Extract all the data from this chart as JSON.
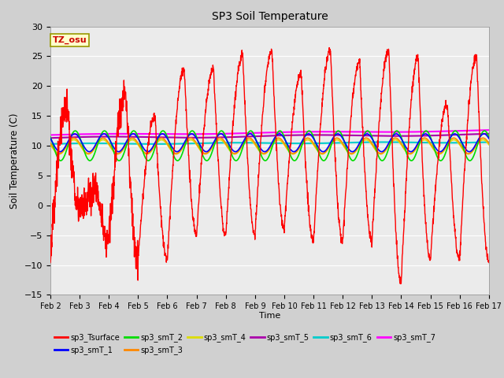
{
  "title": "SP3 Soil Temperature",
  "ylabel": "Soil Temperature (C)",
  "xlabel": "Time",
  "annotation": "TZ_osu",
  "ylim": [
    -15,
    30
  ],
  "xlim": [
    0,
    15
  ],
  "x_tick_labels": [
    "Feb 2",
    "Feb 3",
    "Feb 4",
    "Feb 5",
    "Feb 6",
    "Feb 7",
    "Feb 8",
    "Feb 9",
    "Feb 10",
    "Feb 11",
    "Feb 12",
    "Feb 13",
    "Feb 14",
    "Feb 15",
    "Feb 16",
    "Feb 17"
  ],
  "fig_bg": "#d0d0d0",
  "plot_bg": "#ebebeb",
  "grid_color": "#ffffff",
  "series_colors": {
    "sp3_Tsurface": "#ff0000",
    "sp3_smT_1": "#0000ff",
    "sp3_smT_2": "#00dd00",
    "sp3_smT_3": "#ff8800",
    "sp3_smT_4": "#dddd00",
    "sp3_smT_5": "#aa00aa",
    "sp3_smT_6": "#00cccc",
    "sp3_smT_7": "#ff00ff"
  },
  "legend_entries": [
    "sp3_Tsurface",
    "sp3_smT_1",
    "sp3_smT_2",
    "sp3_smT_3",
    "sp3_smT_4",
    "sp3_smT_5",
    "sp3_smT_6",
    "sp3_smT_7"
  ]
}
